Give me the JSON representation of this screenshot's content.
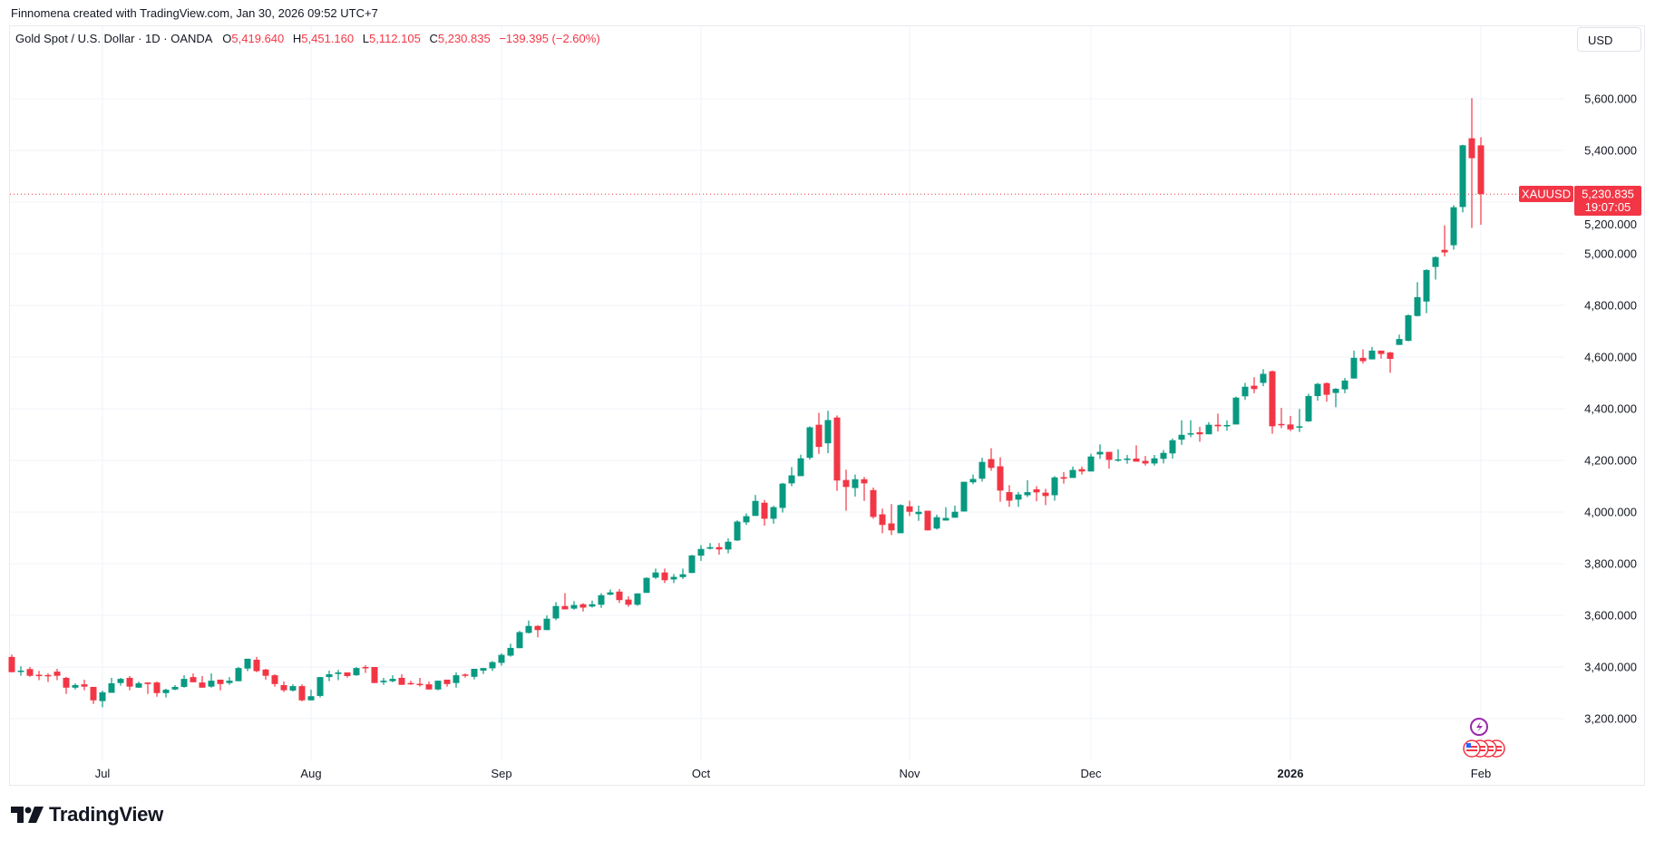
{
  "attribution": "Finnomena created with TradingView.com, Jan 30, 2026 09:52 UTC+7",
  "legend": {
    "title": "Gold Spot / U.S. Dollar · 1D · OANDA",
    "o_label": "O",
    "o_value": "5,419.640",
    "h_label": "H",
    "h_value": "5,451.160",
    "l_label": "L",
    "l_value": "5,112.105",
    "c_label": "C",
    "c_value": "5,230.835",
    "change": "−139.395 (−2.60%)"
  },
  "currency_button": "USD",
  "price_label": {
    "symbol": "XAUUSD",
    "price": "5,230.835",
    "countdown": "19:07:05"
  },
  "brand": "TradingView",
  "colors": {
    "up": "#089981",
    "down": "#f23645",
    "grid": "#f0f3fa",
    "event": "#9c27b0"
  },
  "events": {
    "lightning": "lightning-event",
    "flags": 4
  },
  "chart_data": {
    "type": "candlestick",
    "title": "Gold Spot / U.S. Dollar · 1D · OANDA",
    "ylim": [
      2945,
      5790
    ],
    "yticks": [
      3200,
      3400,
      3600,
      3800,
      4000,
      4200,
      4400,
      4600,
      4800,
      5000,
      5200,
      5400,
      5600
    ],
    "ytick_labels": [
      "3,200.000",
      "3,400.000",
      "3,600.000",
      "3,800.000",
      "4,000.000",
      "4,200.000",
      "4,400.000",
      "4,600.000",
      "4,800.000",
      "5,000.000",
      "5,200.000",
      "5,400.000",
      "5,600.000"
    ],
    "xticks": [
      {
        "bar": 11,
        "label": "Jul"
      },
      {
        "bar": 34,
        "label": "Aug"
      },
      {
        "bar": 55,
        "label": "Sep"
      },
      {
        "bar": 77,
        "label": "Oct"
      },
      {
        "bar": 100,
        "label": "Nov"
      },
      {
        "bar": 120,
        "label": "Dec"
      },
      {
        "bar": 142,
        "label": "2026",
        "bold": true
      },
      {
        "bar": 163,
        "label": "Feb"
      }
    ],
    "last_price": 5230.835,
    "ohlc_fields": [
      "open",
      "high",
      "low",
      "close"
    ],
    "ohlc": [
      [
        3439,
        3448,
        3380,
        3380
      ],
      [
        3384,
        3403,
        3366,
        3386
      ],
      [
        3392,
        3400,
        3362,
        3366
      ],
      [
        3370,
        3385,
        3349,
        3368
      ],
      [
        3369,
        3375,
        3342,
        3367
      ],
      [
        3382,
        3393,
        3349,
        3366
      ],
      [
        3358,
        3362,
        3296,
        3320
      ],
      [
        3320,
        3337,
        3313,
        3330
      ],
      [
        3333,
        3351,
        3310,
        3324
      ],
      [
        3323,
        3323,
        3257,
        3271
      ],
      [
        3268,
        3309,
        3244,
        3302
      ],
      [
        3300,
        3358,
        3300,
        3337
      ],
      [
        3338,
        3358,
        3328,
        3354
      ],
      [
        3358,
        3365,
        3310,
        3324
      ],
      [
        3320,
        3344,
        3320,
        3337
      ],
      [
        3340,
        3340,
        3296,
        3334
      ],
      [
        3340,
        3344,
        3285,
        3299
      ],
      [
        3299,
        3316,
        3282,
        3312
      ],
      [
        3313,
        3330,
        3310,
        3323
      ],
      [
        3323,
        3368,
        3320,
        3354
      ],
      [
        3361,
        3375,
        3341,
        3341
      ],
      [
        3340,
        3365,
        3320,
        3320
      ],
      [
        3324,
        3375,
        3320,
        3347
      ],
      [
        3351,
        3351,
        3310,
        3334
      ],
      [
        3338,
        3361,
        3331,
        3347
      ],
      [
        3345,
        3400,
        3345,
        3396
      ],
      [
        3394,
        3432,
        3384,
        3432
      ],
      [
        3428,
        3439,
        3380,
        3384
      ],
      [
        3390,
        3393,
        3351,
        3366
      ],
      [
        3368,
        3372,
        3324,
        3334
      ],
      [
        3330,
        3344,
        3303,
        3310
      ],
      [
        3309,
        3333,
        3305,
        3326
      ],
      [
        3326,
        3333,
        3267,
        3271
      ],
      [
        3271,
        3312,
        3271,
        3287
      ],
      [
        3288,
        3361,
        3282,
        3361
      ],
      [
        3361,
        3386,
        3345,
        3372
      ],
      [
        3373,
        3389,
        3349,
        3379
      ],
      [
        3379,
        3379,
        3359,
        3365
      ],
      [
        3368,
        3400,
        3366,
        3396
      ],
      [
        3400,
        3407,
        3377,
        3397
      ],
      [
        3400,
        3400,
        3338,
        3338
      ],
      [
        3341,
        3358,
        3331,
        3347
      ],
      [
        3345,
        3368,
        3341,
        3354
      ],
      [
        3358,
        3372,
        3331,
        3331
      ],
      [
        3338,
        3347,
        3331,
        3334
      ],
      [
        3335,
        3358,
        3324,
        3333
      ],
      [
        3333,
        3344,
        3313,
        3313
      ],
      [
        3313,
        3347,
        3310,
        3347
      ],
      [
        3351,
        3351,
        3324,
        3334
      ],
      [
        3338,
        3379,
        3320,
        3368
      ],
      [
        3371,
        3375,
        3359,
        3369
      ],
      [
        3362,
        3393,
        3352,
        3393
      ],
      [
        3386,
        3396,
        3373,
        3396
      ],
      [
        3395,
        3423,
        3385,
        3419
      ],
      [
        3416,
        3453,
        3405,
        3447
      ],
      [
        3444,
        3490,
        3440,
        3474
      ],
      [
        3473,
        3540,
        3473,
        3535
      ],
      [
        3532,
        3580,
        3530,
        3559
      ],
      [
        3559,
        3562,
        3515,
        3543
      ],
      [
        3543,
        3600,
        3543,
        3587
      ],
      [
        3588,
        3651,
        3581,
        3636
      ],
      [
        3636,
        3686,
        3623,
        3623
      ],
      [
        3626,
        3655,
        3622,
        3640
      ],
      [
        3643,
        3647,
        3615,
        3630
      ],
      [
        3634,
        3657,
        3630,
        3643
      ],
      [
        3641,
        3686,
        3629,
        3678
      ],
      [
        3680,
        3700,
        3678,
        3689
      ],
      [
        3692,
        3702,
        3648,
        3659
      ],
      [
        3661,
        3673,
        3633,
        3641
      ],
      [
        3641,
        3685,
        3637,
        3685
      ],
      [
        3687,
        3747,
        3687,
        3745
      ],
      [
        3746,
        3781,
        3741,
        3766
      ],
      [
        3766,
        3781,
        3725,
        3736
      ],
      [
        3739,
        3760,
        3725,
        3749
      ],
      [
        3748,
        3781,
        3741,
        3759
      ],
      [
        3764,
        3834,
        3764,
        3832
      ],
      [
        3831,
        3872,
        3811,
        3857
      ],
      [
        3858,
        3880,
        3855,
        3864
      ],
      [
        3864,
        3880,
        3835,
        3855
      ],
      [
        3855,
        3898,
        3840,
        3885
      ],
      [
        3890,
        3968,
        3888,
        3963
      ],
      [
        3960,
        3995,
        3950,
        3984
      ],
      [
        3985,
        4066,
        3985,
        4043
      ],
      [
        4036,
        4047,
        3947,
        3974
      ],
      [
        3974,
        4024,
        3955,
        4019
      ],
      [
        4016,
        4113,
        3998,
        4110
      ],
      [
        4111,
        4174,
        4100,
        4142
      ],
      [
        4139,
        4222,
        4139,
        4208
      ],
      [
        4210,
        4332,
        4203,
        4328
      ],
      [
        4338,
        4384,
        4225,
        4252
      ],
      [
        4266,
        4392,
        4228,
        4356
      ],
      [
        4366,
        4374,
        4082,
        4122
      ],
      [
        4124,
        4164,
        4005,
        4097
      ],
      [
        4093,
        4145,
        4060,
        4127
      ],
      [
        4127,
        4136,
        4043,
        4111
      ],
      [
        4085,
        4095,
        3974,
        3981
      ],
      [
        3991,
        4013,
        3918,
        3950
      ],
      [
        3956,
        4031,
        3911,
        3929
      ],
      [
        3918,
        4030,
        3918,
        4027
      ],
      [
        4022,
        4044,
        3984,
        4001
      ],
      [
        3992,
        4025,
        3966,
        4001
      ],
      [
        4005,
        4005,
        3929,
        3929
      ],
      [
        3936,
        3990,
        3932,
        3980
      ],
      [
        3967,
        4019,
        3967,
        3977
      ],
      [
        3978,
        4025,
        3978,
        4001
      ],
      [
        4002,
        4117,
        4002,
        4117
      ],
      [
        4115,
        4145,
        4108,
        4128
      ],
      [
        4129,
        4210,
        4118,
        4194
      ],
      [
        4205,
        4247,
        4160,
        4171
      ],
      [
        4177,
        4212,
        4040,
        4083
      ],
      [
        4077,
        4104,
        4020,
        4044
      ],
      [
        4048,
        4078,
        4020,
        4068
      ],
      [
        4065,
        4123,
        4058,
        4077
      ],
      [
        4088,
        4100,
        4042,
        4076
      ],
      [
        4075,
        4090,
        4027,
        4062
      ],
      [
        4065,
        4139,
        4044,
        4134
      ],
      [
        4135,
        4155,
        4110,
        4129
      ],
      [
        4132,
        4176,
        4132,
        4163
      ],
      [
        4166,
        4176,
        4145,
        4157
      ],
      [
        4157,
        4226,
        4157,
        4215
      ],
      [
        4223,
        4262,
        4206,
        4233
      ],
      [
        4233,
        4233,
        4168,
        4202
      ],
      [
        4202,
        4243,
        4195,
        4204
      ],
      [
        4204,
        4221,
        4187,
        4207
      ],
      [
        4207,
        4258,
        4195,
        4195
      ],
      [
        4198,
        4217,
        4180,
        4188
      ],
      [
        4188,
        4221,
        4180,
        4208
      ],
      [
        4206,
        4240,
        4188,
        4229
      ],
      [
        4227,
        4285,
        4207,
        4278
      ],
      [
        4280,
        4355,
        4260,
        4299
      ],
      [
        4300,
        4355,
        4290,
        4305
      ],
      [
        4309,
        4330,
        4272,
        4301
      ],
      [
        4301,
        4348,
        4301,
        4338
      ],
      [
        4338,
        4381,
        4312,
        4332
      ],
      [
        4335,
        4355,
        4315,
        4337
      ],
      [
        4339,
        4447,
        4339,
        4443
      ],
      [
        4448,
        4500,
        4434,
        4485
      ],
      [
        4489,
        4522,
        4460,
        4476
      ],
      [
        4500,
        4553,
        4487,
        4535
      ],
      [
        4545,
        4548,
        4303,
        4332
      ],
      [
        4341,
        4403,
        4325,
        4339
      ],
      [
        4339,
        4372,
        4313,
        4320
      ],
      [
        4327,
        4399,
        4310,
        4332
      ],
      [
        4351,
        4458,
        4349,
        4449
      ],
      [
        4449,
        4500,
        4431,
        4496
      ],
      [
        4499,
        4502,
        4427,
        4454
      ],
      [
        4461,
        4480,
        4406,
        4477
      ],
      [
        4475,
        4519,
        4460,
        4509
      ],
      [
        4517,
        4625,
        4517,
        4597
      ],
      [
        4597,
        4630,
        4575,
        4584
      ],
      [
        4591,
        4639,
        4591,
        4625
      ],
      [
        4625,
        4625,
        4594,
        4612
      ],
      [
        4618,
        4620,
        4539,
        4593
      ],
      [
        4647,
        4687,
        4647,
        4670
      ],
      [
        4663,
        4765,
        4661,
        4762
      ],
      [
        4759,
        4890,
        4757,
        4832
      ],
      [
        4815,
        4940,
        4770,
        4937
      ],
      [
        4949,
        4990,
        4900,
        4987
      ],
      [
        5015,
        5110,
        4990,
        5005
      ],
      [
        5033,
        5188,
        5016,
        5180
      ],
      [
        5181,
        5422,
        5160,
        5420
      ],
      [
        5447,
        5602,
        5100,
        5370
      ],
      [
        5419.64,
        5451.16,
        5112.105,
        5230.835
      ]
    ]
  }
}
